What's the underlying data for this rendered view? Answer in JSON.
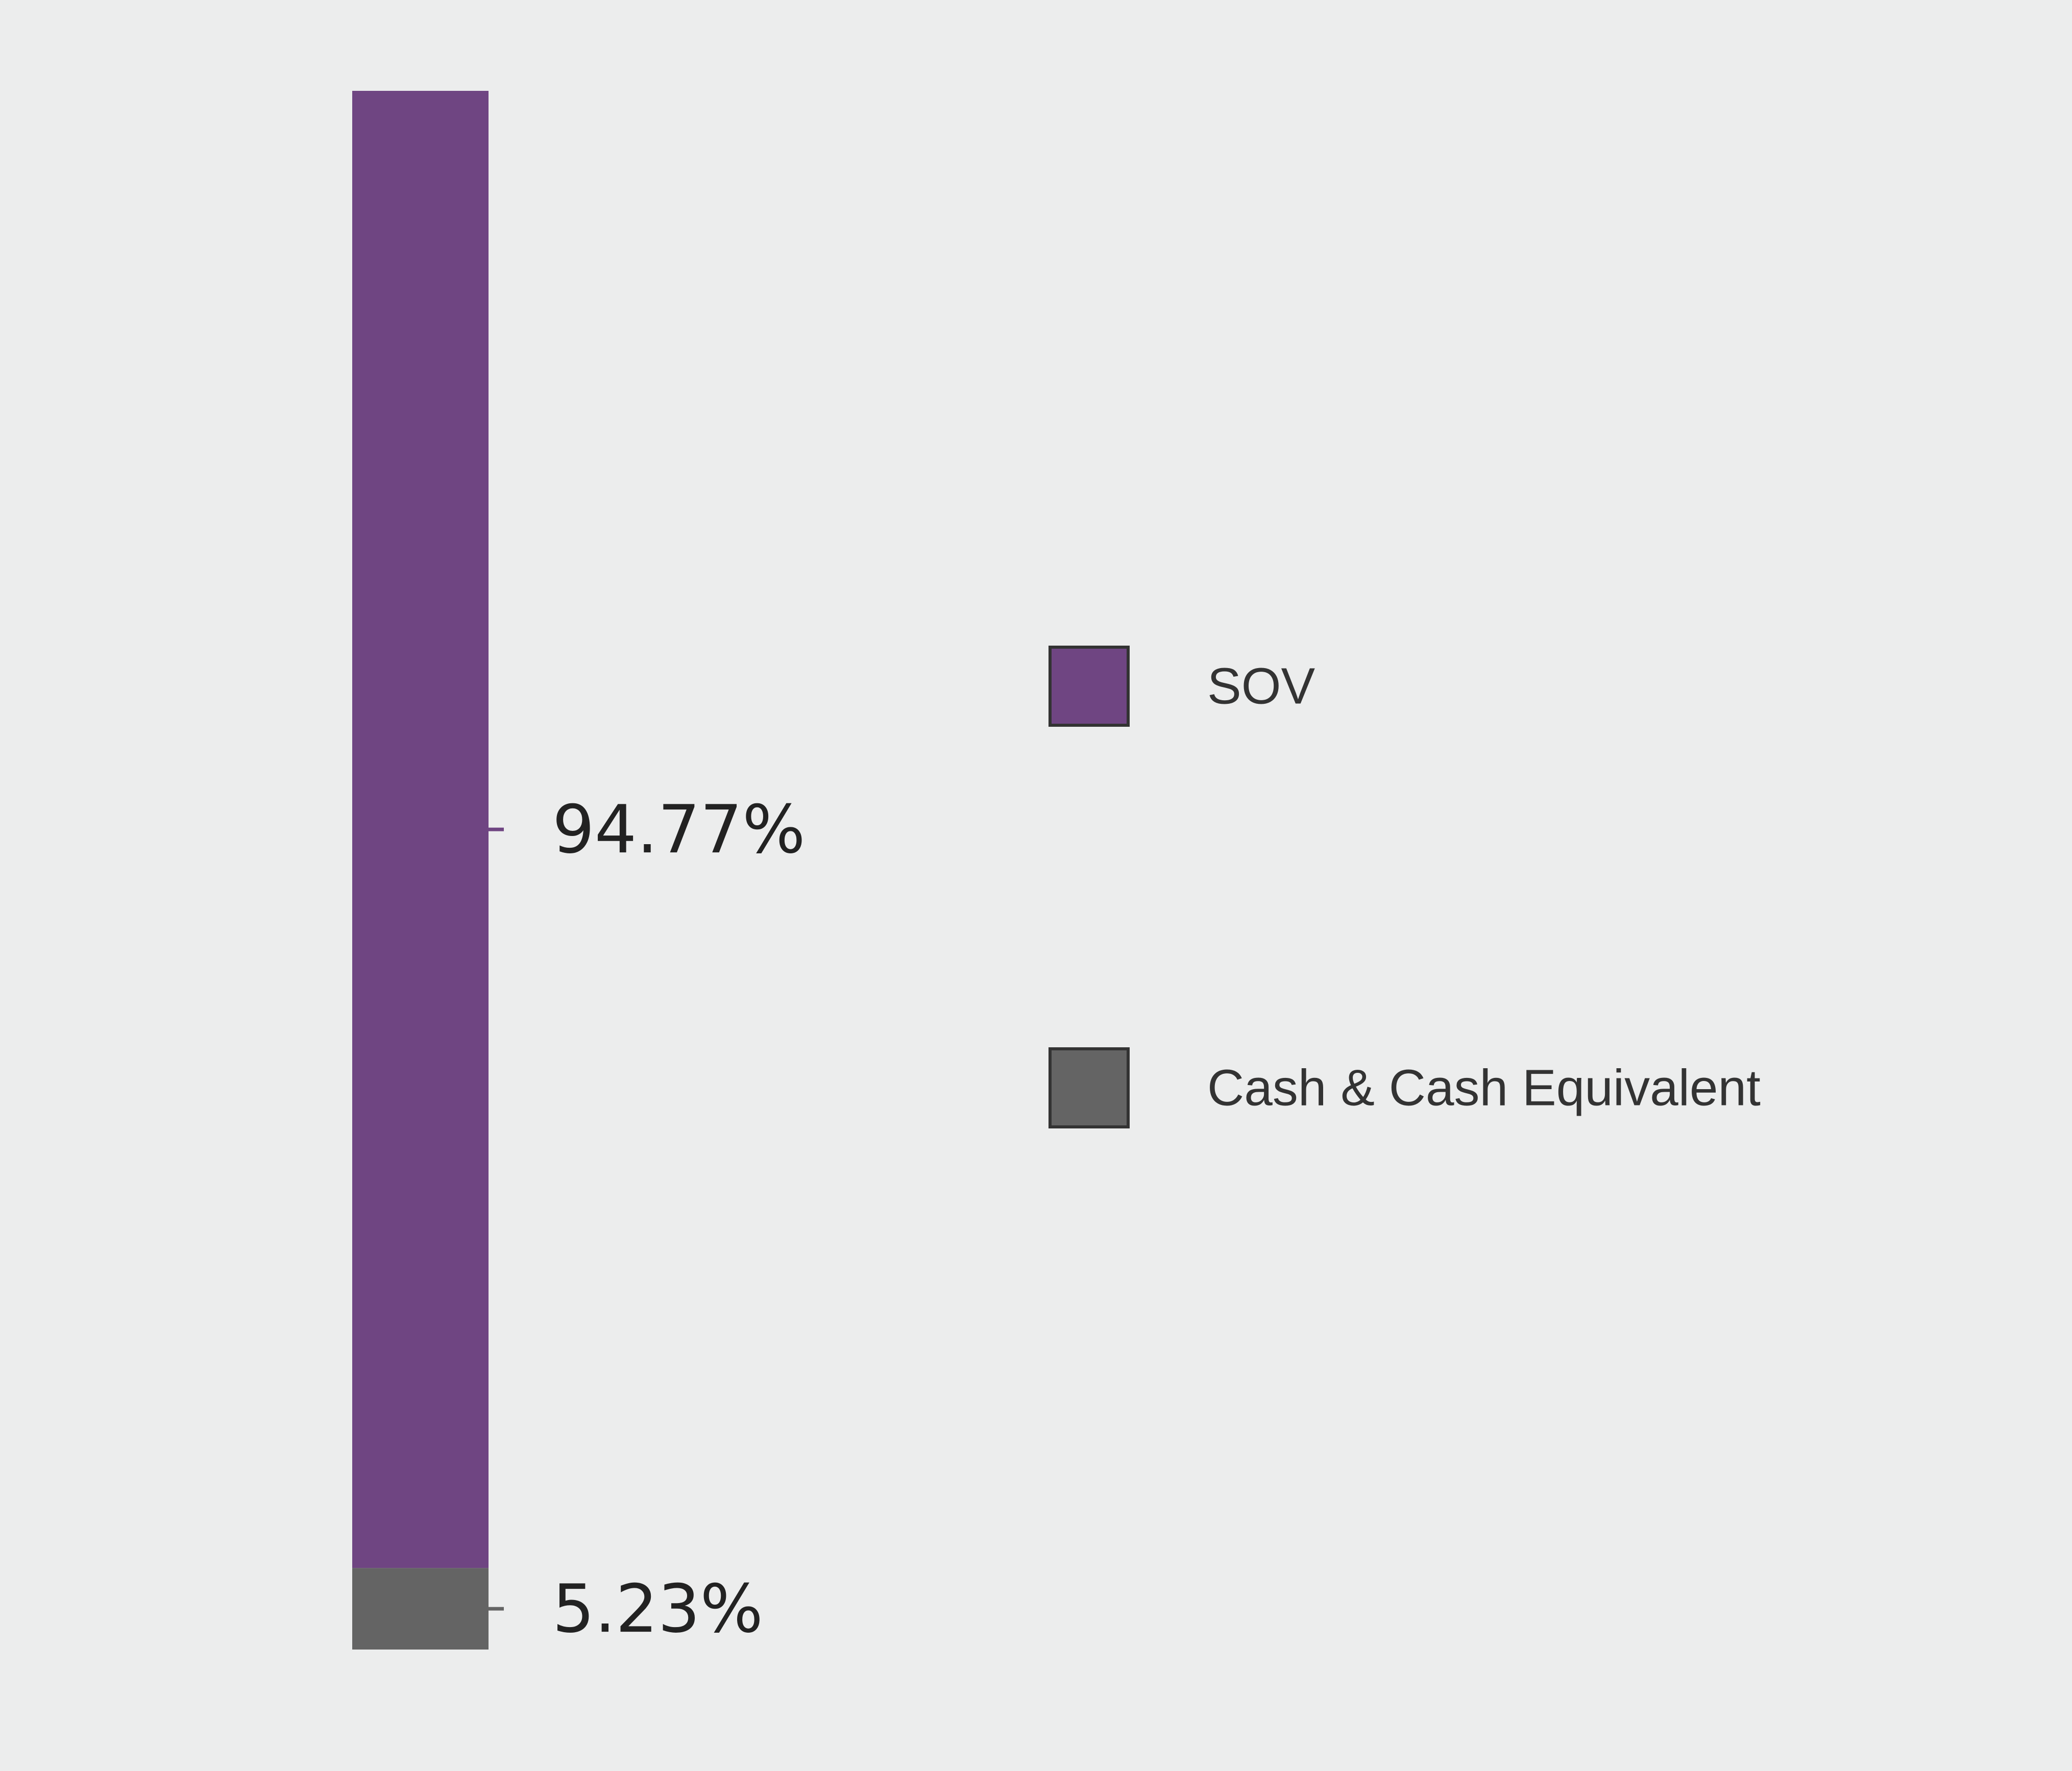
{
  "chart_data": {
    "type": "bar",
    "stacked": true,
    "orientation": "vertical",
    "unit": "%",
    "categories": [
      ""
    ],
    "series": [
      {
        "name": "SOV",
        "values": [
          94.77
        ],
        "label": "94.77%",
        "color": "#6f4582"
      },
      {
        "name": "Cash & Cash Equivalent",
        "values": [
          5.23
        ],
        "label": "5.23%",
        "color": "#646464"
      }
    ],
    "ylim": [
      0,
      100
    ],
    "grid": false,
    "legend_position": "right",
    "background_color": "#eceded"
  }
}
